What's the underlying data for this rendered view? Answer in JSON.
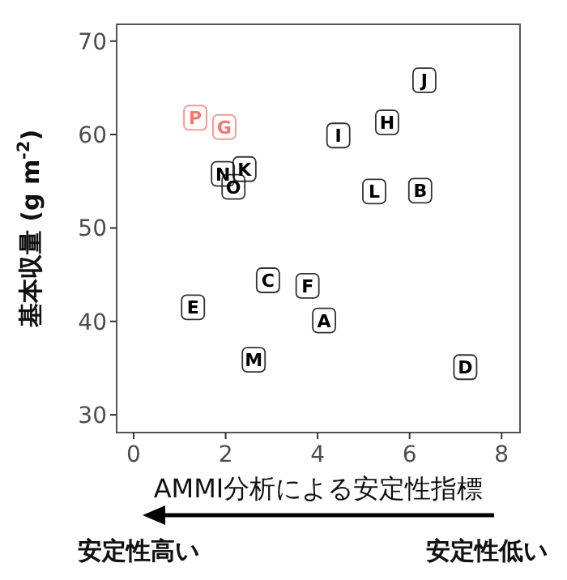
{
  "chart_data": {
    "type": "scatter",
    "xlabel": "AMMI分析による安定性指標",
    "ylabel": "基本収量 (g m$^{-2}$)",
    "xlim": [
      -0.37,
      8.4
    ],
    "ylim": [
      28.1,
      71.8
    ],
    "xticks": [
      0,
      2,
      4,
      6,
      8
    ],
    "yticks": [
      30,
      40,
      50,
      60,
      70
    ],
    "grid": false,
    "series": [
      {
        "name": "A",
        "color": "#000000",
        "x": [
          4.14
        ],
        "values": [
          40.1
        ]
      },
      {
        "name": "B",
        "color": "#000000",
        "x": [
          6.23
        ],
        "values": [
          54.0
        ]
      },
      {
        "name": "C",
        "color": "#000000",
        "x": [
          2.92
        ],
        "values": [
          44.4
        ]
      },
      {
        "name": "D",
        "color": "#000000",
        "x": [
          7.21
        ],
        "values": [
          35.1
        ]
      },
      {
        "name": "E",
        "color": "#000000",
        "x": [
          1.29
        ],
        "values": [
          41.5
        ]
      },
      {
        "name": "F",
        "color": "#000000",
        "x": [
          3.78
        ],
        "values": [
          43.8
        ]
      },
      {
        "name": "G",
        "color": "#f8766d",
        "x": [
          1.97
        ],
        "values": [
          60.8
        ]
      },
      {
        "name": "H",
        "color": "#000000",
        "x": [
          5.51
        ],
        "values": [
          61.3
        ]
      },
      {
        "name": "I",
        "color": "#000000",
        "x": [
          4.45
        ],
        "values": [
          59.9
        ]
      },
      {
        "name": "J",
        "color": "#000000",
        "x": [
          6.32
        ],
        "values": [
          65.8
        ]
      },
      {
        "name": "K",
        "color": "#000000",
        "x": [
          2.41
        ],
        "values": [
          56.3
        ]
      },
      {
        "name": "L",
        "color": "#000000",
        "x": [
          5.23
        ],
        "values": [
          53.9
        ]
      },
      {
        "name": "M",
        "color": "#000000",
        "x": [
          2.61
        ],
        "values": [
          35.9
        ]
      },
      {
        "name": "N",
        "color": "#000000",
        "x": [
          1.94
        ],
        "values": [
          55.8
        ]
      },
      {
        "name": "O",
        "color": "#000000",
        "x": [
          2.17
        ],
        "values": [
          54.4
        ]
      },
      {
        "name": "P",
        "color": "#f8766d",
        "x": [
          1.34
        ],
        "values": [
          61.8
        ]
      }
    ],
    "annotations": [
      "安定性高い",
      "安定性低い"
    ]
  }
}
